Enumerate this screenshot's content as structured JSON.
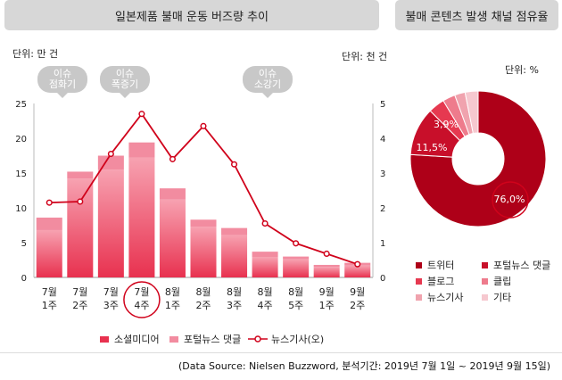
{
  "left_panel": {
    "title": "일본제품 불매 운동 버즈량 추이",
    "left_unit": "단위: 만 건",
    "right_unit": "단위: 천 건",
    "phases": [
      {
        "line1": "이슈",
        "line2": "점화기"
      },
      {
        "line1": "이슈",
        "line2": "폭증기"
      },
      {
        "line1": "이슈",
        "line2": "소강기"
      }
    ],
    "legend": {
      "social": "소셜미디어",
      "portal": "포털뉴스 댓글",
      "news": "뉴스기사(오)"
    }
  },
  "right_panel": {
    "title": "불매 콘텐츠 발생 채널 점유율",
    "unit": "단위: %",
    "legend": [
      "트위터",
      "포털뉴스 댓글",
      "블로그",
      "클립",
      "뉴스기사",
      "기타"
    ]
  },
  "source": "(Data Source: Nielsen Buzzword,  분석기간: 2019년 7월 1일 ~ 2019년 9월 15일)",
  "colors": {
    "social_bar": "#e8314f",
    "portal_bar": "#f28ca0",
    "news_line": "#d0021b",
    "header_bg": "#d7d7d7"
  },
  "chart_data": [
    {
      "type": "bar",
      "categories": [
        "7월 1주",
        "7월 2주",
        "7월 3주",
        "7월 4주",
        "8월 1주",
        "8월 2주",
        "8월 3주",
        "8월 4주",
        "8월 5주",
        "9월 1주",
        "9월 2주"
      ],
      "highlight_category": "7월 4주",
      "ylim_left": [
        0,
        25
      ],
      "ylim_right": [
        0,
        5
      ],
      "y_ticks_left": [
        0,
        5,
        10,
        15,
        20,
        25
      ],
      "y_ticks_right": [
        0,
        1,
        2,
        3,
        4,
        5
      ],
      "series": [
        {
          "name": "소셜미디어",
          "axis": "left",
          "stack": true,
          "values": [
            6.8,
            14.2,
            15.5,
            17.2,
            11.2,
            7.3,
            6.1,
            2.9,
            2.6,
            1.5,
            1.7
          ]
        },
        {
          "name": "포털뉴스 댓글",
          "axis": "left",
          "stack": true,
          "values": [
            1.8,
            1.0,
            2.0,
            2.2,
            1.6,
            1.0,
            1.0,
            0.8,
            0.4,
            0.3,
            0.4
          ]
        },
        {
          "name": "뉴스기사(오)",
          "axis": "right",
          "type": "line",
          "values": [
            2.15,
            2.18,
            3.55,
            4.7,
            3.4,
            4.35,
            3.25,
            1.55,
            0.98,
            0.68,
            0.38
          ]
        }
      ]
    },
    {
      "type": "pie",
      "style": "donut",
      "labels": [
        "트위터",
        "포털뉴스 댓글",
        "블로그",
        "클립",
        "뉴스기사",
        "기타"
      ],
      "values": [
        76.0,
        11.5,
        3.9,
        3.0,
        2.5,
        3.1
      ],
      "shown_labels": [
        "76,0%",
        "11,5%",
        "3,9%"
      ],
      "colors": [
        "#ae0018",
        "#c80f2a",
        "#e63950",
        "#ee7b8c",
        "#f0a3ae",
        "#f6c8cf"
      ],
      "highlight_label": "트위터"
    }
  ]
}
